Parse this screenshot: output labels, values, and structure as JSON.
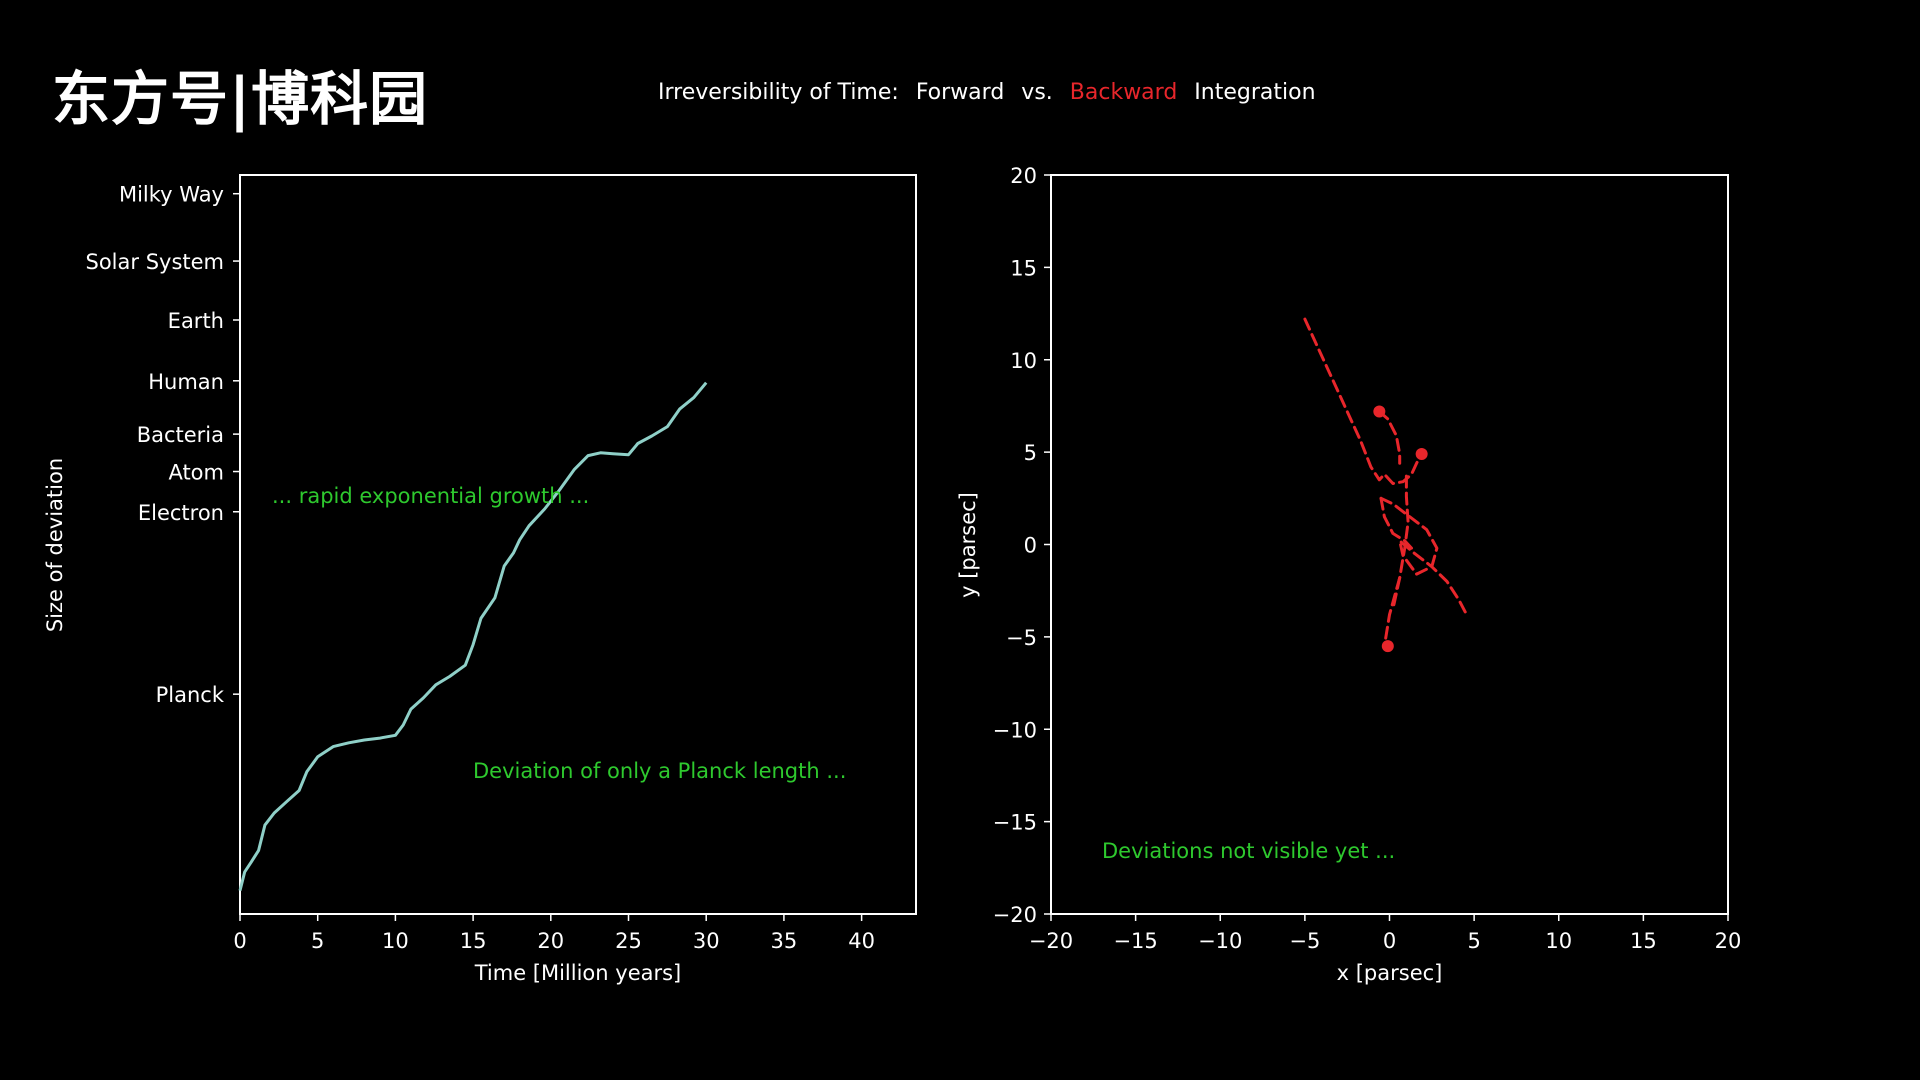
{
  "logo": "东方号|博科园",
  "title": {
    "part1": "Irreversibility of Time:",
    "part2": "Forward",
    "part3": "vs.",
    "part4": "Backward",
    "part5": "Integration"
  },
  "colors": {
    "background": "#000000",
    "line": "#8fd0c8",
    "backward": "#e8262b",
    "annotation": "#2ec92e",
    "axis": "#ffffff"
  },
  "chart_data": [
    {
      "type": "line",
      "xlabel": "Time [Million years]",
      "ylabel": "Size of deviation",
      "xlim": [
        0,
        43.5
      ],
      "xticks": [
        0,
        5,
        10,
        15,
        20,
        25,
        30,
        35,
        40
      ],
      "ylevels": {
        "Milky Way": 70.0,
        "Solar System": 62.8,
        "Earth": 56.5,
        "Human": 50.0,
        "Bacteria": 44.3,
        "Atom": 40.3,
        "Electron": 36.0,
        "Planck": 16.5
      },
      "ylim": [
        -7,
        72
      ],
      "annotations": [
        "... rapid exponential growth ...",
        "Deviation of only a Planck length ..."
      ],
      "series": [
        {
          "x": [
            0,
            0.3,
            0.7,
            1.2,
            1.6,
            2.2,
            3,
            3.8,
            4.3,
            5,
            6,
            7,
            8,
            9,
            10,
            10.5,
            11,
            11.8,
            12.6,
            13.5,
            14.5,
            15,
            15.5,
            16.4,
            17,
            17.6,
            18,
            18.6,
            19.6,
            20.5,
            21.5,
            22.4,
            23.2,
            24,
            25,
            25.6,
            26.5,
            27.5,
            28.3,
            29.2,
            30
          ],
          "y": [
            -4.5,
            -2.5,
            -1.5,
            -0.2,
            2.5,
            3.8,
            5.0,
            6.2,
            8.2,
            9.8,
            10.9,
            11.3,
            11.6,
            11.8,
            12.1,
            13.2,
            14.9,
            16.1,
            17.5,
            18.4,
            19.6,
            21.8,
            24.6,
            26.8,
            30.2,
            31.6,
            33.0,
            34.5,
            36.3,
            38.2,
            40.5,
            42.0,
            42.3,
            42.2,
            42.1,
            43.3,
            44.1,
            45.1,
            47.0,
            48.2,
            49.8
          ]
        }
      ]
    },
    {
      "type": "line",
      "xlabel": "x [parsec]",
      "ylabel": "y [parsec]",
      "xlim": [
        -20,
        20
      ],
      "ylim": [
        -20,
        20
      ],
      "xticks": [
        -20,
        -15,
        -10,
        -5,
        0,
        5,
        10,
        15,
        20
      ],
      "yticks": [
        -20,
        -15,
        -10,
        -5,
        0,
        5,
        10,
        15,
        20
      ],
      "xtick_labels": [
        "−20",
        "−15",
        "−10",
        "−5",
        "0",
        "5",
        "10",
        "15",
        "20"
      ],
      "ytick_labels": [
        "−20",
        "−15",
        "−10",
        "−5",
        "0",
        "5",
        "10",
        "15",
        "20"
      ],
      "annotations": [
        "Deviations not visible yet ..."
      ],
      "series": [
        {
          "style": "dashed",
          "x": [
            -5,
            -4.2,
            -3.4,
            -2.5,
            -1.7,
            -1.1,
            -0.6,
            -0.3,
            0.2,
            0.8,
            1.3,
            1.6,
            1.9
          ],
          "y": [
            12.2,
            10.6,
            9.0,
            7.2,
            5.6,
            4.2,
            3.5,
            3.8,
            3.3,
            3.4,
            3.8,
            4.4,
            4.9
          ]
        },
        {
          "style": "dashed",
          "x": [
            -0.6,
            -0.1,
            0.4,
            0.6,
            0.6
          ],
          "y": [
            7.2,
            6.8,
            5.9,
            4.9,
            4.4
          ]
        },
        {
          "style": "dashed",
          "x": [
            1.0,
            1.0,
            1.1,
            0.9,
            0.6,
            0.2
          ],
          "y": [
            3.7,
            2.6,
            1.2,
            -0.2,
            -1.8,
            -3.5
          ]
        },
        {
          "style": "dashed",
          "x": [
            -0.5,
            0.2,
            1.2,
            2.2,
            2.8,
            2.5,
            1.6,
            0.8,
            0.6,
            1.5,
            2.5,
            3.4,
            4.1,
            4.5
          ],
          "y": [
            2.5,
            2.2,
            1.5,
            0.8,
            -0.2,
            -1.2,
            -1.6,
            -0.6,
            0.2,
            -0.5,
            -1.2,
            -2.0,
            -3.0,
            -3.7
          ]
        },
        {
          "style": "dashed",
          "x": [
            -0.5,
            -0.3,
            0.2,
            0.9,
            1.3
          ],
          "y": [
            2.5,
            1.5,
            0.6,
            0.2,
            -0.2
          ]
        },
        {
          "style": "dashed",
          "x": [
            0.6,
            0.0,
            -0.3
          ],
          "y": [
            -1.8,
            -3.8,
            -5.5
          ]
        }
      ],
      "markers": [
        {
          "x": -0.6,
          "y": 7.2
        },
        {
          "x": 1.9,
          "y": 4.9
        },
        {
          "x": -0.1,
          "y": -5.5
        }
      ]
    }
  ]
}
